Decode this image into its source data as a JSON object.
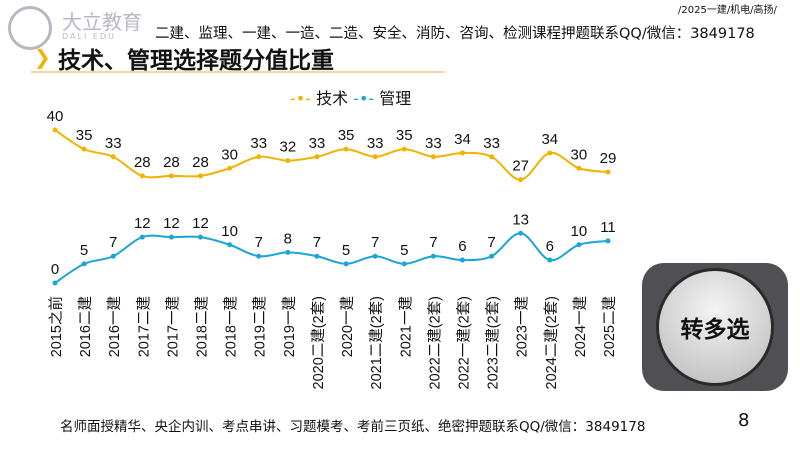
{
  "header": {
    "logo_text": "大立教育",
    "logo_sub": "DALI EDU",
    "note": "二建、监理、一建、一造、二造、安全、消防、咨询、检测课程押题联系QQ/微信：3849178",
    "top_right": "/2025一建/机电/高扬/"
  },
  "title": "技术、管理选择题分值比重",
  "footer": {
    "text": "名师面授精华、央企内训、考点串讲、习题模考、考前三页纸、绝密押题联系QQ/微信：3849178",
    "page": "8"
  },
  "button": {
    "label": "转多选"
  },
  "chart_data": {
    "type": "line",
    "categories": [
      "2015之前",
      "2016二建",
      "2016一建",
      "2017二建",
      "2017一建",
      "2018二建",
      "2018一建",
      "2019二建",
      "2019一建",
      "2020二建(2套)",
      "2020一建",
      "2021二建(2套)",
      "2021一建",
      "2022二建(2套)",
      "2022一建(2套)",
      "2023二建(2套)",
      "2023一建",
      "2024二建(2套)",
      "2024一建",
      "2025二建"
    ],
    "series": [
      {
        "name": "技术",
        "color": "#f0b400",
        "values": [
          40,
          35,
          33,
          28,
          28,
          28,
          30,
          33,
          32,
          33,
          35,
          33,
          35,
          33,
          34,
          33,
          27,
          34,
          30,
          29
        ]
      },
      {
        "name": "管理",
        "color": "#1aa5d6",
        "values": [
          0,
          5,
          7,
          12,
          12,
          12,
          10,
          7,
          8,
          7,
          5,
          7,
          5,
          7,
          6,
          7,
          13,
          6,
          10,
          11
        ]
      }
    ],
    "legend": "top",
    "grid": false,
    "data_labels": true,
    "ylim": [
      0,
      40
    ]
  }
}
